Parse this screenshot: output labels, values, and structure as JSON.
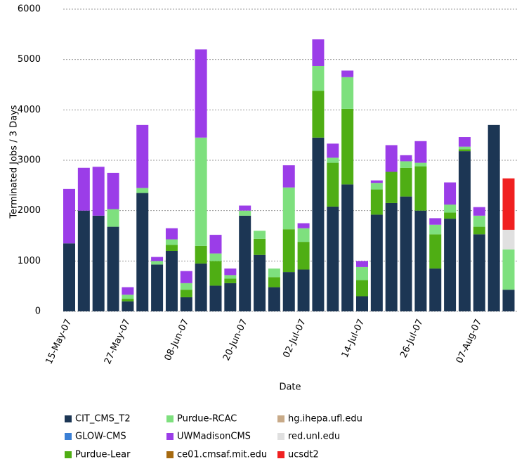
{
  "chart_data": {
    "type": "bar",
    "stacked": true,
    "x_label": "Date",
    "y_label": "Terminated Jobs / 3 Days",
    "categories": [
      "15-May-07",
      null,
      null,
      null,
      "27-May-07",
      null,
      null,
      null,
      "08-Jun-07",
      null,
      null,
      null,
      "20-Jun-07",
      null,
      null,
      null,
      "02-Jul-07",
      null,
      null,
      null,
      "14-Jul-07",
      null,
      null,
      null,
      "26-Jul-07",
      null,
      null,
      null,
      "07-Aug-07",
      null,
      null
    ],
    "ylim": [
      0,
      6000
    ],
    "yticks": [
      0,
      1000,
      2000,
      3000,
      4000,
      5000,
      6000
    ],
    "grid": true,
    "series": [
      {
        "name": "CIT_CMS_T2",
        "color": "#1c3654",
        "values": [
          1350,
          2000,
          1900,
          1680,
          200,
          2350,
          930,
          1200,
          280,
          950,
          510,
          560,
          1900,
          1120,
          480,
          780,
          830,
          3450,
          2080,
          2520,
          300,
          1920,
          2150,
          2280,
          2000,
          850,
          1840,
          3180,
          1530,
          3700,
          430
        ]
      },
      {
        "name": "GLOW-CMS",
        "color": "#3a7fd5",
        "values": [
          0,
          0,
          0,
          0,
          0,
          0,
          0,
          0,
          0,
          0,
          0,
          0,
          0,
          0,
          0,
          0,
          0,
          0,
          0,
          0,
          0,
          0,
          0,
          0,
          0,
          0,
          0,
          0,
          0,
          0,
          0
        ]
      },
      {
        "name": "Purdue-Lear",
        "color": "#4fae14",
        "values": [
          0,
          0,
          0,
          0,
          50,
          0,
          0,
          120,
          150,
          350,
          490,
          90,
          0,
          320,
          200,
          850,
          550,
          930,
          870,
          1500,
          320,
          500,
          620,
          570,
          880,
          680,
          120,
          40,
          150,
          0,
          0
        ]
      },
      {
        "name": "Purdue-RCAC",
        "color": "#7ee07e",
        "values": [
          0,
          0,
          0,
          350,
          80,
          100,
          70,
          110,
          130,
          2150,
          150,
          70,
          100,
          160,
          170,
          830,
          270,
          490,
          100,
          630,
          260,
          130,
          0,
          130,
          70,
          190,
          160,
          50,
          220,
          0,
          800
        ]
      },
      {
        "name": "UWMadisonCMS",
        "color": "#9b3de8",
        "values": [
          1080,
          850,
          970,
          720,
          150,
          1250,
          80,
          220,
          240,
          1750,
          370,
          130,
          100,
          0,
          0,
          440,
          100,
          530,
          280,
          130,
          120,
          50,
          530,
          120,
          430,
          130,
          440,
          190,
          170,
          0,
          0
        ]
      },
      {
        "name": "ce01.cmsaf.mit.edu",
        "color": "#a66a10",
        "values": [
          0,
          0,
          0,
          0,
          0,
          0,
          0,
          0,
          0,
          0,
          0,
          0,
          0,
          0,
          0,
          0,
          0,
          0,
          0,
          0,
          0,
          0,
          0,
          0,
          0,
          0,
          0,
          0,
          0,
          0,
          0
        ]
      },
      {
        "name": "hg.ihepa.ufl.edu",
        "color": "#c8aa88",
        "values": [
          0,
          0,
          0,
          0,
          0,
          0,
          0,
          0,
          0,
          0,
          0,
          0,
          0,
          0,
          0,
          0,
          0,
          0,
          0,
          0,
          0,
          0,
          0,
          0,
          0,
          0,
          0,
          0,
          0,
          0,
          0
        ]
      },
      {
        "name": "red.unl.edu",
        "color": "#e0e0e0",
        "values": [
          0,
          0,
          0,
          0,
          0,
          0,
          0,
          0,
          0,
          0,
          0,
          0,
          0,
          0,
          0,
          0,
          0,
          0,
          0,
          0,
          0,
          0,
          0,
          0,
          0,
          0,
          0,
          0,
          0,
          0,
          390
        ]
      },
      {
        "name": "ucsdt2",
        "color": "#f02020",
        "values": [
          0,
          0,
          0,
          0,
          0,
          0,
          0,
          0,
          0,
          0,
          0,
          0,
          0,
          0,
          0,
          0,
          0,
          0,
          0,
          0,
          0,
          0,
          0,
          0,
          0,
          0,
          0,
          0,
          0,
          0,
          1020
        ]
      }
    ]
  }
}
